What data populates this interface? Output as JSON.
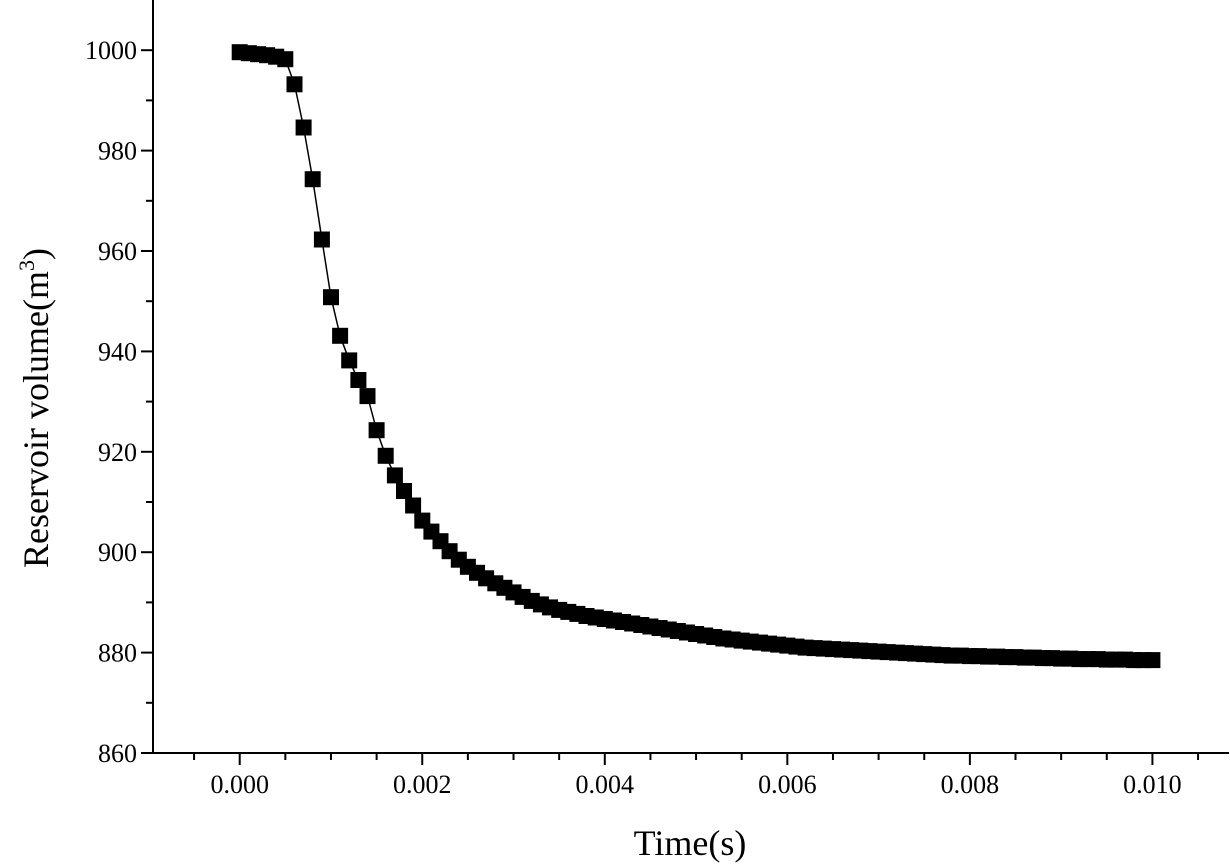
{
  "chart_data": {
    "type": "scatter",
    "title": "",
    "xlabel": "Time(s)",
    "ylabel_main": "Reservoir volume(m",
    "ylabel_sup": "3",
    "ylabel_close": ")",
    "xlim": [
      -0.00095,
      0.01085
    ],
    "ylim": [
      860,
      1010
    ],
    "x_ticks": [
      0.0,
      0.002,
      0.004,
      0.006,
      0.008,
      0.01
    ],
    "x_tick_labels": [
      "0.000",
      "0.002",
      "0.004",
      "0.006",
      "0.008",
      "0.010"
    ],
    "x_minor_ticks": [
      -0.0005,
      0.0005,
      0.001,
      0.0015,
      0.0025,
      0.003,
      0.0035,
      0.0045,
      0.005,
      0.0055,
      0.0065,
      0.007,
      0.0075,
      0.0085,
      0.009,
      0.0095,
      0.0105
    ],
    "y_ticks": [
      860,
      880,
      900,
      920,
      940,
      960,
      980,
      1000
    ],
    "y_tick_labels": [
      "860",
      "880",
      "900",
      "920",
      "940",
      "960",
      "980",
      "1000"
    ],
    "y_minor_ticks": [
      870,
      890,
      910,
      930,
      950,
      970,
      990
    ],
    "grid": false,
    "marker": "square",
    "line": "connected",
    "color": "#000000",
    "series": [
      {
        "x": [
          0,
          0.0001,
          0.0002,
          0.0003,
          0.0004,
          0.0005,
          0.0006,
          0.0007,
          0.0008,
          0.0009,
          0.001,
          0.0011,
          0.0012,
          0.0013,
          0.0014,
          0.0015,
          0.0016,
          0.0017,
          0.0018,
          0.0019,
          0.002,
          0.0021,
          0.0022,
          0.0023,
          0.0024,
          0.0025,
          0.0026,
          0.0027,
          0.0028,
          0.0029,
          0.003,
          0.0031,
          0.0032,
          0.0033,
          0.0034,
          0.0035,
          0.0036,
          0.0037,
          0.0038,
          0.0039,
          0.004,
          0.0041,
          0.0042,
          0.0043,
          0.0044,
          0.0045,
          0.0046,
          0.0047,
          0.0048,
          0.0049,
          0.005,
          0.0051,
          0.0052,
          0.0053,
          0.0054,
          0.0055,
          0.0056,
          0.0057,
          0.0058,
          0.0059,
          0.006,
          0.0061,
          0.0062,
          0.0063,
          0.0064,
          0.0065,
          0.0066,
          0.0067,
          0.0068,
          0.0069,
          0.007,
          0.0071,
          0.0072,
          0.0073,
          0.0074,
          0.0075,
          0.0076,
          0.0077,
          0.0078,
          0.0079,
          0.008,
          0.0081,
          0.0082,
          0.0083,
          0.0084,
          0.0085,
          0.0086,
          0.0087,
          0.0088,
          0.0089,
          0.009,
          0.0091,
          0.0092,
          0.0093,
          0.0094,
          0.0095,
          0.0096,
          0.0097,
          0.0098,
          0.0099,
          0.01
        ],
        "y": [
          999.6,
          999.4,
          999.2,
          999,
          998.7,
          998.2,
          993.2,
          984.6,
          974.3,
          962.3,
          950.8,
          943.1,
          938.2,
          934.3,
          931.1,
          924.3,
          919.2,
          915.3,
          912.2,
          909.3,
          906.3,
          904.1,
          902.2,
          900.2,
          898.5,
          897.1,
          895.9,
          894.8,
          893.8,
          892.9,
          892,
          891.1,
          890.3,
          889.6,
          889,
          888.5,
          888.1,
          887.7,
          887.3,
          887,
          886.7,
          886.4,
          886.1,
          885.8,
          885.5,
          885.2,
          884.9,
          884.6,
          884.3,
          884,
          883.7,
          883.4,
          883.1,
          882.8,
          882.6,
          882.4,
          882.2,
          882,
          881.8,
          881.6,
          881.4,
          881.2,
          881,
          880.9,
          880.8,
          880.7,
          880.6,
          880.5,
          880.4,
          880.3,
          880.2,
          880.1,
          880,
          879.9,
          879.8,
          879.7,
          879.6,
          879.5,
          879.4,
          879.4,
          879.3,
          879.3,
          879.2,
          879.2,
          879.1,
          879.1,
          879,
          879,
          878.9,
          878.9,
          878.8,
          878.8,
          878.7,
          878.7,
          878.7,
          878.6,
          878.6,
          878.6,
          878.5,
          878.5,
          878.5
        ]
      }
    ]
  }
}
